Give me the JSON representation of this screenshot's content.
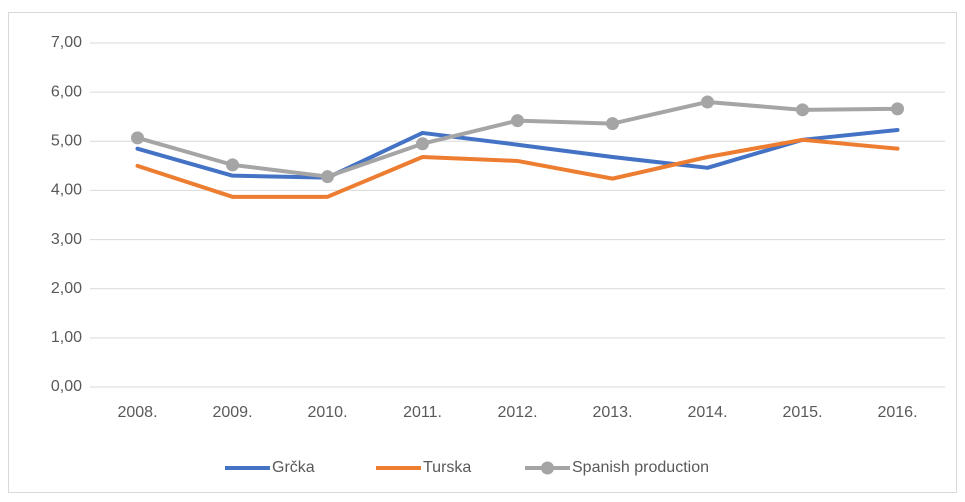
{
  "chart_data": {
    "type": "line",
    "categories": [
      "2008.",
      "2009.",
      "2010.",
      "2011.",
      "2012.",
      "2013.",
      "2014.",
      "2015.",
      "2016."
    ],
    "series": [
      {
        "name": "Grčka",
        "color": "#4472c4",
        "marker": false,
        "values": [
          4.85,
          4.3,
          4.26,
          5.17,
          4.93,
          4.68,
          4.46,
          5.03,
          5.23
        ]
      },
      {
        "name": "Turska",
        "color": "#ed7d31",
        "marker": false,
        "values": [
          4.5,
          3.87,
          3.87,
          4.68,
          4.6,
          4.24,
          4.68,
          5.03,
          4.85
        ]
      },
      {
        "name": "Spanish production",
        "color": "#a5a5a5",
        "marker": true,
        "values": [
          5.07,
          4.52,
          4.28,
          4.95,
          5.42,
          5.36,
          5.8,
          5.64,
          5.66
        ]
      }
    ],
    "ylim": [
      0,
      7
    ],
    "yticks": [
      {
        "value": 0,
        "label": "0,00"
      },
      {
        "value": 1,
        "label": "1,00"
      },
      {
        "value": 2,
        "label": "2,00"
      },
      {
        "value": 3,
        "label": "3,00"
      },
      {
        "value": 4,
        "label": "4,00"
      },
      {
        "value": 5,
        "label": "5,00"
      },
      {
        "value": 6,
        "label": "6,00"
      },
      {
        "value": 7,
        "label": "7,00"
      }
    ],
    "grid": true,
    "legend": "bottom"
  }
}
